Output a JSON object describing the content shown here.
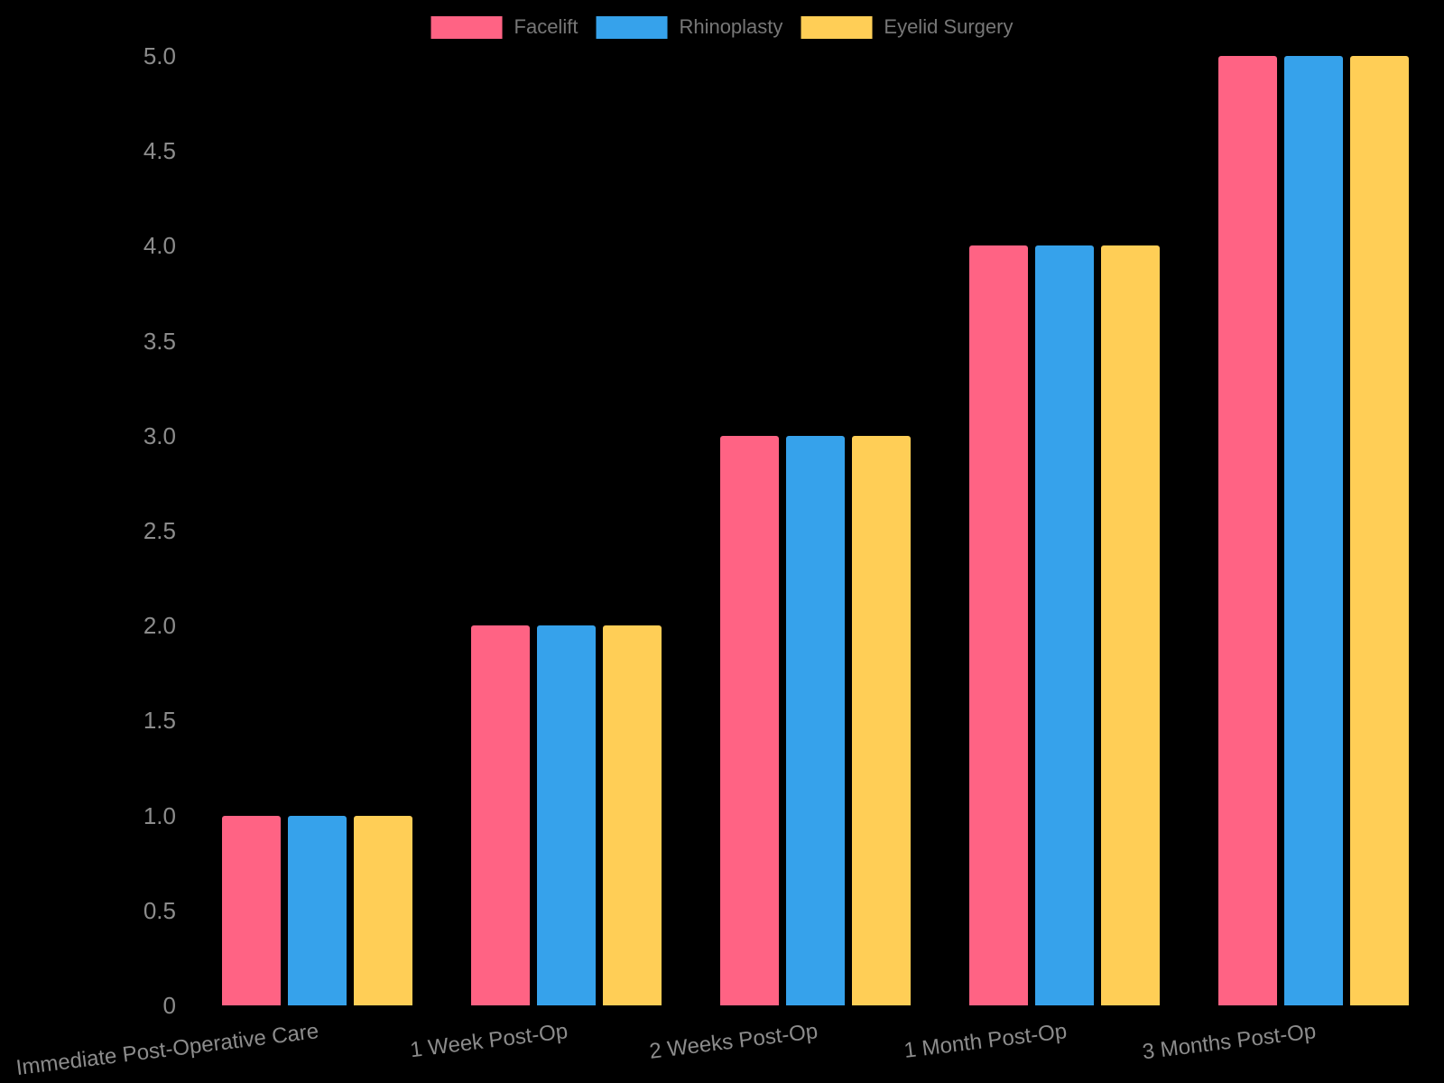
{
  "chart_data": {
    "type": "bar",
    "title": "",
    "xlabel": "",
    "ylabel": "",
    "categories": [
      "Immediate Post-Operative Care",
      "1 Week Post-Op",
      "2 Weeks Post-Op",
      "1 Month Post-Op",
      "3 Months Post-Op"
    ],
    "series": [
      {
        "name": "Facelift",
        "color": "#FF6384",
        "values": [
          1,
          2,
          3,
          4,
          5
        ]
      },
      {
        "name": "Rhinoplasty",
        "color": "#36A2EB",
        "values": [
          1,
          2,
          3,
          4,
          5
        ]
      },
      {
        "name": "Eyelid Surgery",
        "color": "#FFCE56",
        "values": [
          1,
          2,
          3,
          4,
          5
        ]
      }
    ],
    "ylim": [
      0,
      5
    ],
    "yticks": [
      "0",
      "0.5",
      "1.0",
      "1.5",
      "2.0",
      "2.5",
      "3.0",
      "3.5",
      "4.0",
      "4.5",
      "5.0"
    ],
    "grid": false,
    "legend_position": "top-center",
    "background_color": "#000000",
    "tick_label_color": "#8c8c8c",
    "legend_text_color": "#777777"
  }
}
